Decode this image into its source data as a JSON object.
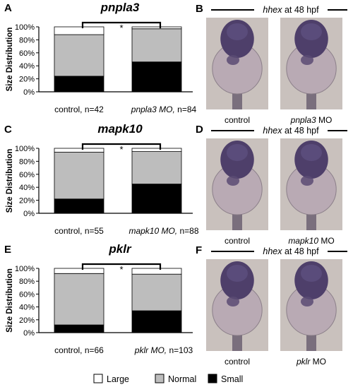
{
  "figure": {
    "ylabel": "Size Distribution",
    "legend": {
      "position": "bottom-center",
      "entries": [
        {
          "label": "Large",
          "color": "#ffffff"
        },
        {
          "label": "Normal",
          "color": "#bdbdbd"
        },
        {
          "label": "Small",
          "color": "#000000"
        }
      ]
    },
    "panels": [
      {
        "letter": "A",
        "gene": "pnpla3",
        "cat1": {
          "plain": "control, n=42",
          "ital": "",
          "tail": ""
        },
        "cat2": {
          "plain": "",
          "ital": "pnpla3 MO,",
          "tail": " n=84"
        },
        "sig": "*"
      },
      {
        "letter": "C",
        "gene": "mapk10",
        "cat1": {
          "plain": "control, n=55",
          "ital": "",
          "tail": ""
        },
        "cat2": {
          "plain": "",
          "ital": "mapk10 MO,",
          "tail": " n=88"
        },
        "sig": "*"
      },
      {
        "letter": "E",
        "gene": "pklr",
        "cat1": {
          "plain": "control, n=66",
          "ital": "",
          "tail": ""
        },
        "cat2": {
          "plain": "",
          "ital": "pklr MO,",
          "tail": " n=103"
        },
        "sig": "*"
      }
    ],
    "images": [
      {
        "letter": "B",
        "probe": "hhex",
        "stage": " at 48 hpf",
        "left": {
          "ital": "",
          "plain": "control"
        },
        "right": {
          "ital": "pnpla3",
          "plain": " MO"
        }
      },
      {
        "letter": "D",
        "probe": "hhex",
        "stage": " at 48 hpf",
        "left": {
          "ital": "",
          "plain": "control"
        },
        "right": {
          "ital": "mapk10",
          "plain": " MO"
        }
      },
      {
        "letter": "F",
        "probe": "hhex",
        "stage": " at 48 hpf",
        "left": {
          "ital": "",
          "plain": "control"
        },
        "right": {
          "ital": "pklr",
          "plain": " MO"
        }
      }
    ]
  },
  "chart_data": [
    {
      "type": "bar",
      "stacked": true,
      "title": "pnpla3",
      "ylabel": "Size Distribution",
      "ylim": [
        0,
        100
      ],
      "yticks": [
        "0%",
        "20%",
        "40%",
        "60%",
        "80%",
        "100%"
      ],
      "grid": false,
      "categories": [
        "control, n=42",
        "pnpla3 MO, n=84"
      ],
      "series": [
        {
          "name": "Small",
          "values": [
            24,
            46
          ]
        },
        {
          "name": "Normal",
          "values": [
            64,
            51
          ]
        },
        {
          "name": "Large",
          "values": [
            12,
            3
          ]
        }
      ]
    },
    {
      "type": "bar",
      "stacked": true,
      "title": "mapk10",
      "ylabel": "Size Distribution",
      "ylim": [
        0,
        100
      ],
      "yticks": [
        "0%",
        "20%",
        "40%",
        "60%",
        "80%",
        "100%"
      ],
      "grid": false,
      "categories": [
        "control, n=55",
        "mapk10 MO, n=88"
      ],
      "series": [
        {
          "name": "Small",
          "values": [
            22,
            45
          ]
        },
        {
          "name": "Normal",
          "values": [
            72,
            50
          ]
        },
        {
          "name": "Large",
          "values": [
            6,
            5
          ]
        }
      ]
    },
    {
      "type": "bar",
      "stacked": true,
      "title": "pklr",
      "ylabel": "Size Distribution",
      "ylim": [
        0,
        100
      ],
      "yticks": [
        "0%",
        "20%",
        "40%",
        "60%",
        "80%",
        "100%"
      ],
      "grid": false,
      "categories": [
        "control, n=66",
        "pklr MO, n=103"
      ],
      "series": [
        {
          "name": "Small",
          "values": [
            12,
            34
          ]
        },
        {
          "name": "Normal",
          "values": [
            80,
            57
          ]
        },
        {
          "name": "Large",
          "values": [
            8,
            9
          ]
        }
      ]
    }
  ]
}
